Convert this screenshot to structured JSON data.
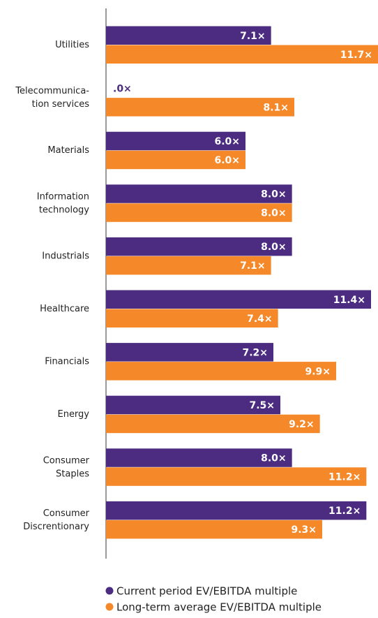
{
  "chart_data": {
    "type": "barh",
    "categories": [
      "Utilities",
      "Telecommunica-\ntion services",
      "Materials",
      "Information\ntechnology",
      "Industrials",
      "Healthcare",
      "Financials",
      "Energy",
      "Consumer\nStaples",
      "Consumer\nDiscrentionary"
    ],
    "series": [
      {
        "name": "Current period EV/EBITDA multiple",
        "color": "#4b2c80",
        "values": [
          7.1,
          0,
          6.0,
          8.0,
          8.0,
          11.4,
          7.2,
          7.5,
          8.0,
          11.2
        ],
        "value_labels": [
          "7.1×",
          ".0×",
          "6.0×",
          "8.0×",
          "8.0×",
          "11.4×",
          "7.2×",
          "7.5×",
          "8.0×",
          "11.2×"
        ]
      },
      {
        "name": "Long-term average EV/EBITDA multiple",
        "color": "#f5892a",
        "values": [
          11.7,
          8.1,
          6.0,
          8.0,
          7.1,
          7.4,
          9.9,
          9.2,
          11.2,
          9.3
        ],
        "value_labels": [
          "11.7×",
          "8.1×",
          "6.0×",
          "8.0×",
          "7.1×",
          "7.4×",
          "9.9×",
          "9.2×",
          "11.2×",
          "9.3×"
        ]
      }
    ],
    "xlim": [
      0,
      11.7
    ],
    "legend": "bottom"
  }
}
